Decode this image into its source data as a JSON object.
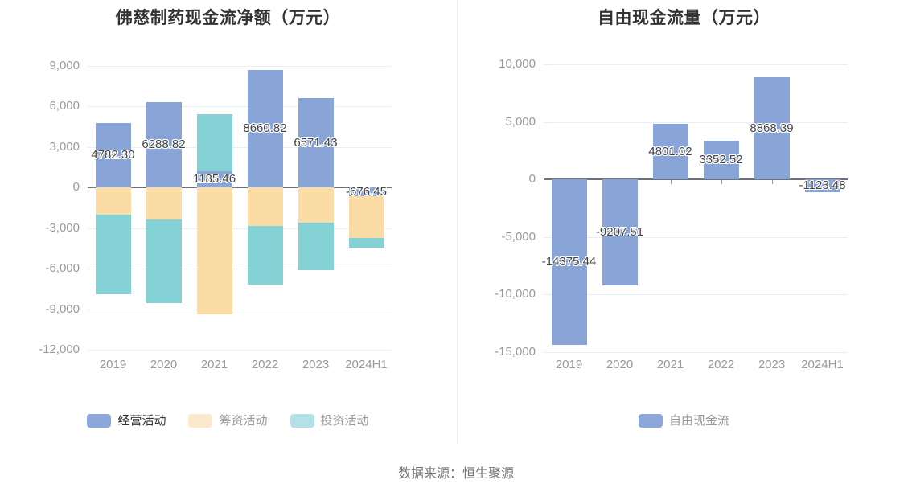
{
  "page": {
    "background": "#ffffff",
    "footer": {
      "source_text": "数据来源：恒生聚源"
    }
  },
  "colors": {
    "grid_line": "#E9EDF5",
    "zero_axis": "#6E7079",
    "axis_label": "#999999",
    "value_label": "#444444",
    "title": "#333333",
    "footer_text": "#757575",
    "divider": "#EBEBEB"
  },
  "chart_data": [
    {
      "type": "bar",
      "title": "佛慈制药现金流净额（万元）",
      "stacked": true,
      "grid": true,
      "legend_position": "bottom",
      "categories": [
        "2019",
        "2020",
        "2021",
        "2022",
        "2023",
        "2024H1"
      ],
      "ylim": [
        -12000,
        9000
      ],
      "ytick_step": 3000,
      "ytick_labels": [
        "9,000",
        "6,000",
        "3,000",
        "0",
        "-3,000",
        "-6,000",
        "-9,000",
        "-12,000"
      ],
      "series": [
        {
          "key": "operating",
          "name": "经营活动",
          "color": "#89A5D8",
          "legend_color": "#8CA8DA",
          "legend_text_color": "#333333",
          "values": [
            4782.3,
            6288.82,
            1185.46,
            8660.82,
            6571.43,
            -676.45
          ],
          "labels": [
            "4782.30",
            "6288.82",
            "1185.46",
            "8660.82",
            "6571.43",
            "-676.45"
          ],
          "labels_shown": true
        },
        {
          "key": "financing",
          "name": "筹资活动",
          "color": "#FBDCA4",
          "legend_color": "#FBE9CB",
          "legend_text_color": "#999999",
          "values": [
            -2040,
            -2400,
            -9400,
            -2860,
            -2600,
            -3070
          ],
          "labels_shown": false
        },
        {
          "key": "investing",
          "name": "投资活动",
          "color": "#85D2D6",
          "legend_color": "#B2E2E6",
          "legend_text_color": "#999999",
          "values": [
            -5880,
            -6150,
            4250,
            -4360,
            -3500,
            -700
          ],
          "labels_shown": false
        }
      ]
    },
    {
      "type": "bar",
      "title": "自由现金流量（万元）",
      "stacked": false,
      "grid": true,
      "legend_position": "bottom",
      "categories": [
        "2019",
        "2020",
        "2021",
        "2022",
        "2023",
        "2024H1"
      ],
      "ylim": [
        -15000,
        10000
      ],
      "ytick_step": 5000,
      "ytick_labels": [
        "10,000",
        "5,000",
        "0",
        "-5,000",
        "-10,000",
        "-15,000"
      ],
      "series": [
        {
          "key": "free-cash-flow",
          "name": "自由现金流",
          "color": "#89A5D8",
          "legend_color": "#8CA8DA",
          "legend_text_color": "#999999",
          "values": [
            -14375.44,
            -9207.51,
            4801.02,
            3352.52,
            8868.39,
            -1123.48
          ],
          "labels": [
            "-14375.44",
            "-9207.51",
            "4801.02",
            "3352.52",
            "8868.39",
            "-1123.48"
          ],
          "labels_shown": true
        }
      ]
    }
  ]
}
